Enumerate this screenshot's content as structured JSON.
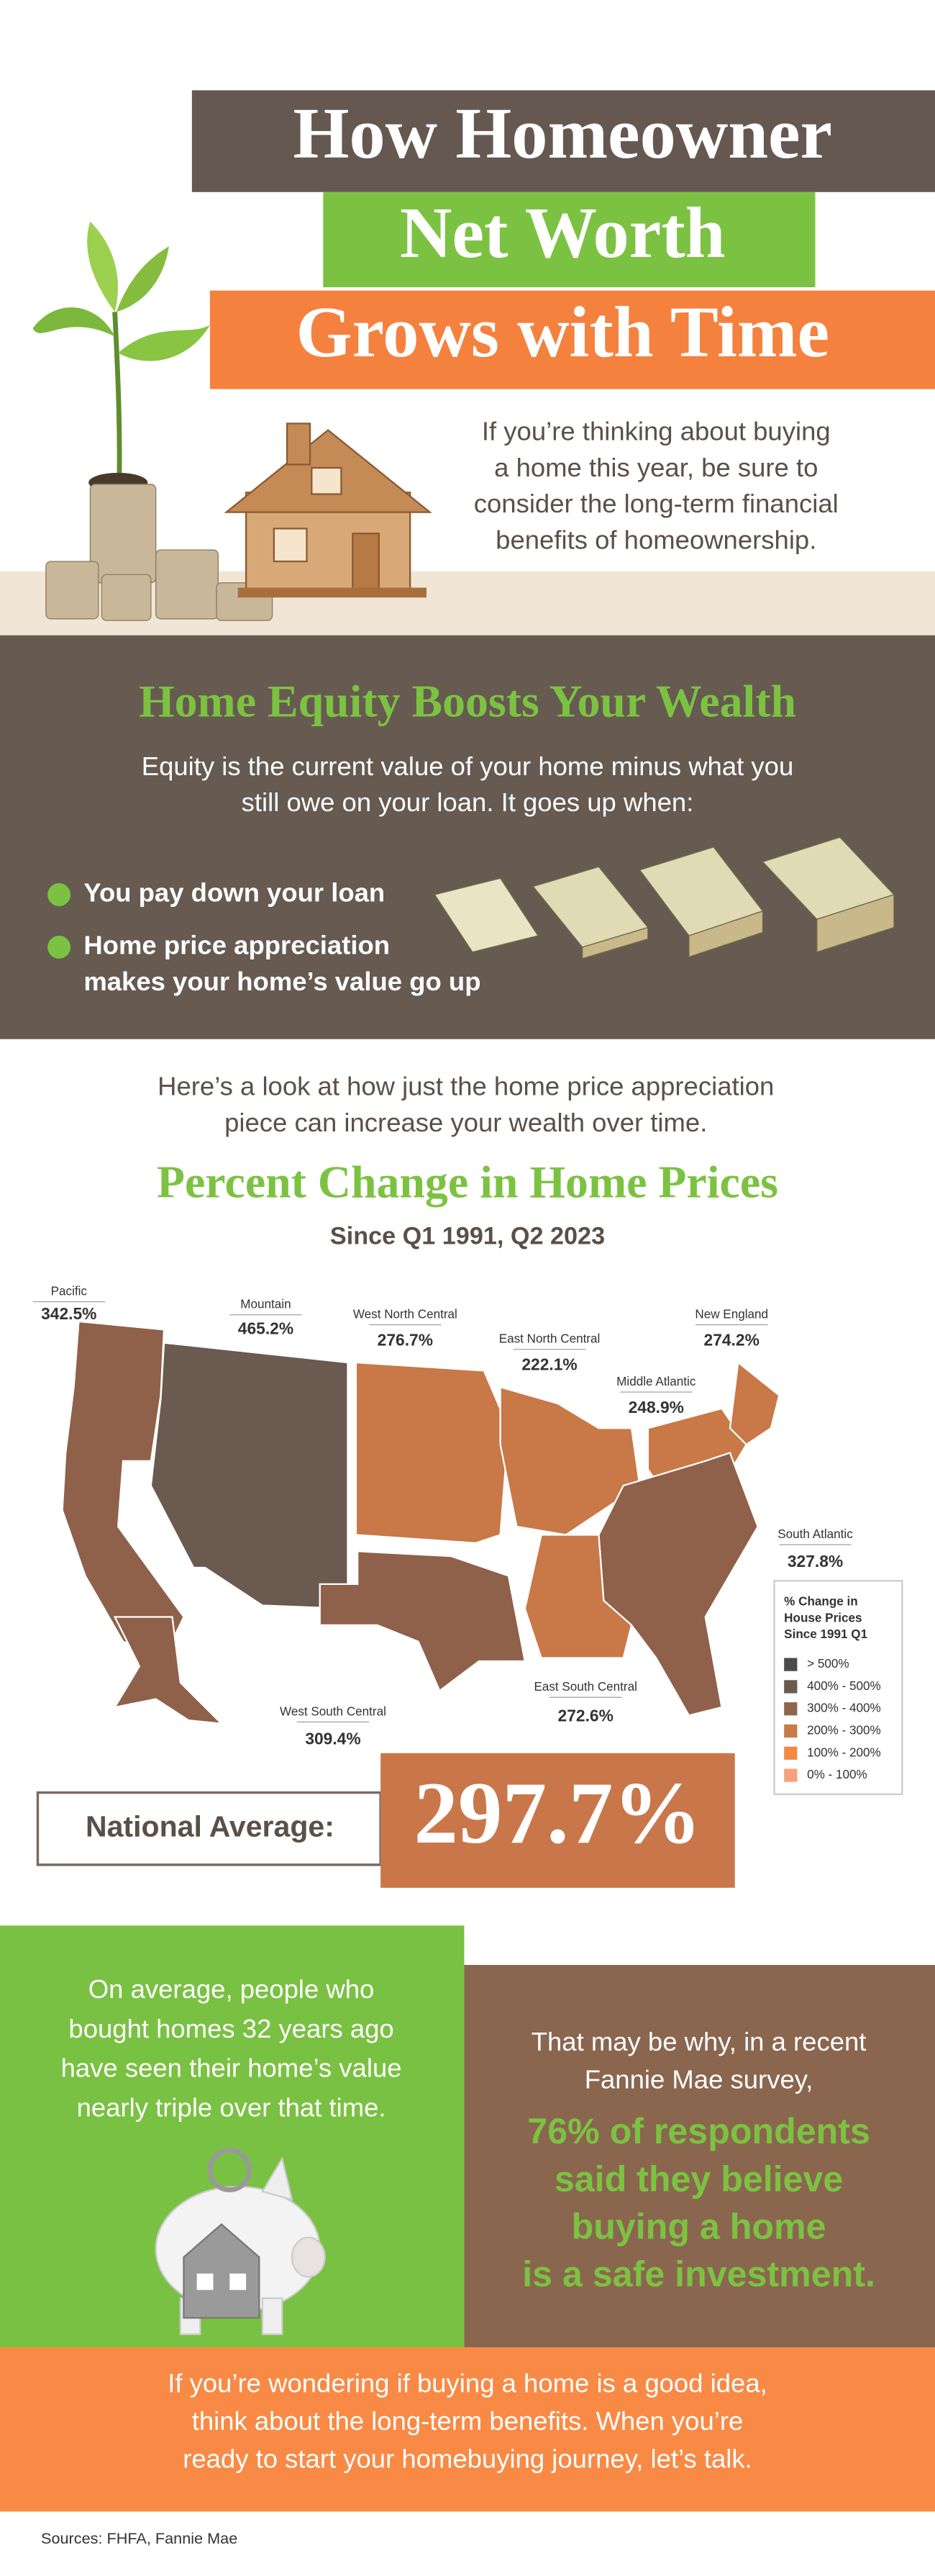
{
  "header": {
    "title_lines": [
      "How Homeowner",
      "Net Worth",
      "Grows with Time"
    ],
    "intro": [
      "If you’re thinking about buying",
      "a home this year, be sure to",
      "consider the long-term financial",
      "benefits of homeownership."
    ]
  },
  "equity": {
    "heading": "Home Equity Boosts Your Wealth",
    "description": [
      "Equity is the current value of your home minus what you",
      "still owe on your loan. It goes up when:"
    ],
    "bullets": [
      [
        "You pay down your loan"
      ],
      [
        "Home price appreciation",
        "makes your home’s value go up"
      ]
    ]
  },
  "transition": [
    "Here’s a look at how just the home price appreciation",
    "piece can increase your wealth over time."
  ],
  "map": {
    "title": "Percent Change in Home Prices",
    "subtitle": "Since Q1 1991, Q2 2023",
    "regions": [
      {
        "name": "Pacific",
        "value": "342.5%"
      },
      {
        "name": "Mountain",
        "value": "465.2%"
      },
      {
        "name": "West North Central",
        "value": "276.7%"
      },
      {
        "name": "East North Central",
        "value": "222.1%"
      },
      {
        "name": "New England",
        "value": "274.2%"
      },
      {
        "name": "Middle Atlantic",
        "value": "248.9%"
      },
      {
        "name": "South Atlantic",
        "value": "327.8%"
      },
      {
        "name": "East South Central",
        "value": "272.6%"
      },
      {
        "name": "West South Central",
        "value": "309.4%"
      }
    ],
    "legend": {
      "title": [
        "% Change in",
        "House Prices",
        "Since 1991 Q1"
      ],
      "items": [
        "> 500%",
        "400% - 500%",
        "300% - 400%",
        "200% - 300%",
        "100% - 200%",
        "0% - 100%"
      ]
    }
  },
  "national_average": {
    "label": "National Average:",
    "value": "297.7%"
  },
  "left_panel": [
    "On average, people who",
    "bought homes 32 years ago",
    "have seen their home’s value",
    "nearly triple over that time."
  ],
  "right_panel": {
    "intro": [
      "That may be why, in a recent",
      "Fannie Mae survey,"
    ],
    "highlight": [
      "76% of respondents",
      "said they believe",
      "buying a home",
      "is a safe investment."
    ]
  },
  "footer": [
    "If you’re wondering if buying a home is a good idea,",
    "think about the long-term benefits. When you’re",
    "ready to start your homebuying journey, let’s talk."
  ],
  "sources": "Sources: FHFA, Fannie Mae"
}
